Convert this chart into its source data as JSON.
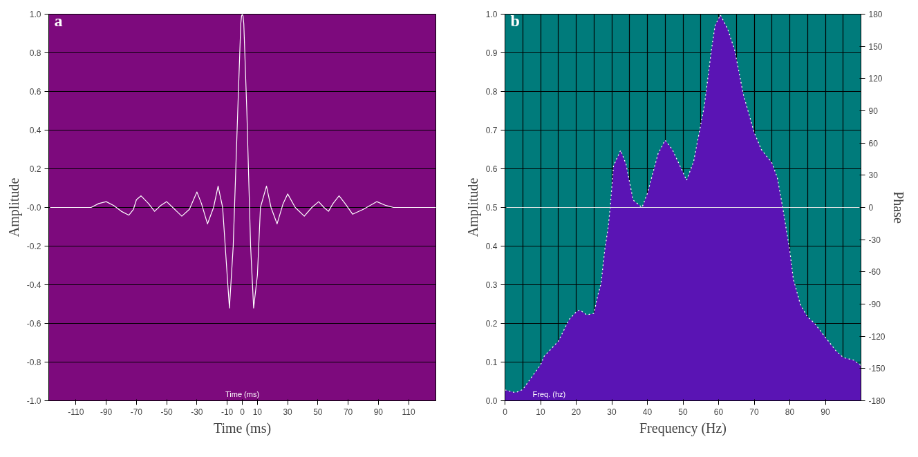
{
  "chart_data": [
    {
      "type": "line",
      "xlabel": "Time (ms)",
      "ylabel": "Amplitude",
      "annotations": [
        "a",
        "Time (ms)"
      ],
      "series": [
        {
          "color": "#ffffff",
          "x": [
            -128,
            -100,
            -95,
            -90,
            -85,
            -80,
            -75,
            -72,
            -70,
            -67,
            -62,
            -58,
            -54,
            -50,
            -46,
            -40,
            -35,
            -30,
            -27,
            -23,
            -19,
            -16,
            -13,
            -10,
            -8.5,
            -6,
            -3,
            -1,
            -0.5,
            0,
            0.5,
            1,
            3,
            5.5,
            7.5,
            10,
            12,
            16,
            19,
            23,
            27,
            30,
            35,
            41,
            46,
            50.5,
            54,
            57,
            60,
            64,
            68,
            73,
            80,
            89,
            95,
            100,
            128
          ],
          "values": [
            0,
            0,
            0.02,
            0.03,
            0.01,
            -0.02,
            -0.04,
            -0.01,
            0.04,
            0.06,
            0.02,
            -0.02,
            0.01,
            0.03,
            0,
            -0.045,
            -0.01,
            0.08,
            0.02,
            -0.085,
            0,
            0.11,
            0,
            -0.35,
            -0.52,
            -0.2,
            0.5,
            0.95,
            0.99,
            1.0,
            0.99,
            0.95,
            0.5,
            -0.2,
            -0.52,
            -0.35,
            0,
            0.11,
            0,
            -0.085,
            0.02,
            0.07,
            0,
            -0.045,
            0,
            0.03,
            0,
            -0.02,
            0.02,
            0.06,
            0.02,
            -0.035,
            -0.01,
            0.03,
            0.01,
            0,
            0
          ]
        }
      ],
      "xlim": [
        -128,
        128
      ],
      "ylim": [
        -1,
        1
      ],
      "xticks": [
        -110,
        -90,
        -70,
        -50,
        -30,
        -10,
        0,
        10,
        30,
        50,
        70,
        90,
        110
      ],
      "yticks": [
        {
          "value": -1,
          "label": "-1.0"
        },
        {
          "value": -0.8,
          "label": "-0.8"
        },
        {
          "value": -0.6,
          "label": "-0.6"
        },
        {
          "value": -0.4,
          "label": "-0.4"
        },
        {
          "value": -0.2,
          "label": "-0.2"
        },
        {
          "value": 0,
          "label": "-0.0"
        },
        {
          "value": 0.2,
          "label": "0.2"
        },
        {
          "value": 0.4,
          "label": "0.4"
        },
        {
          "value": 0.6,
          "label": "0.6"
        },
        {
          "value": 0.8,
          "label": "0.8"
        },
        {
          "value": 1,
          "label": "1.0"
        }
      ],
      "grid": "y",
      "line_style": "solid"
    },
    {
      "type": "area",
      "xlabel": "Frequency (Hz)",
      "ylabel": "Amplitude",
      "y2label": "Phase",
      "annotations": [
        "b",
        "Freq. (hz)"
      ],
      "series": [
        {
          "type": "area",
          "color": "#5a14b4",
          "line_style": "dotted",
          "x": [
            0,
            3,
            5,
            10,
            11,
            15,
            18,
            20,
            21,
            23,
            25,
            26,
            27,
            28,
            29,
            29.5,
            30.5,
            32.5,
            34,
            36,
            38.5,
            40,
            43,
            45,
            47,
            50,
            51,
            53,
            56,
            58,
            59,
            60.5,
            62.5,
            64.5,
            67,
            70,
            72,
            75,
            76.5,
            78,
            80,
            81,
            83,
            85,
            87,
            90,
            93,
            95,
            98,
            100
          ],
          "values": [
            0.028,
            0.021,
            0.029,
            0.093,
            0.115,
            0.154,
            0.21,
            0.23,
            0.235,
            0.222,
            0.226,
            0.27,
            0.304,
            0.388,
            0.45,
            0.494,
            0.608,
            0.648,
            0.612,
            0.519,
            0.5,
            0.536,
            0.639,
            0.674,
            0.65,
            0.591,
            0.57,
            0.619,
            0.763,
            0.908,
            0.97,
            0.998,
            0.963,
            0.908,
            0.791,
            0.694,
            0.65,
            0.615,
            0.577,
            0.501,
            0.388,
            0.315,
            0.248,
            0.217,
            0.2,
            0.164,
            0.129,
            0.112,
            0.105,
            0.091
          ]
        },
        {
          "type": "line",
          "axis": "y2",
          "color": "#e8e8e8",
          "x": [
            0,
            100
          ],
          "values": [
            0,
            0
          ]
        }
      ],
      "xlim": [
        0,
        100
      ],
      "ylim": [
        0,
        1
      ],
      "y2lim": [
        -180,
        180
      ],
      "xticks": [
        0,
        10,
        20,
        30,
        40,
        50,
        60,
        70,
        80,
        90
      ],
      "yticks": [
        {
          "value": 0,
          "label": "0.0"
        },
        {
          "value": 0.1,
          "label": "0.1"
        },
        {
          "value": 0.2,
          "label": "0.2"
        },
        {
          "value": 0.3,
          "label": "0.3"
        },
        {
          "value": 0.4,
          "label": "0.4"
        },
        {
          "value": 0.5,
          "label": "0.5"
        },
        {
          "value": 0.6,
          "label": "0.6"
        },
        {
          "value": 0.7,
          "label": "0.7"
        },
        {
          "value": 0.8,
          "label": "0.8"
        },
        {
          "value": 0.9,
          "label": "0.9"
        },
        {
          "value": 1,
          "label": "1.0"
        }
      ],
      "y2ticks": [
        -180,
        -150,
        -120,
        -90,
        -60,
        -30,
        0,
        30,
        60,
        90,
        120,
        150,
        180
      ],
      "grid": true
    }
  ]
}
